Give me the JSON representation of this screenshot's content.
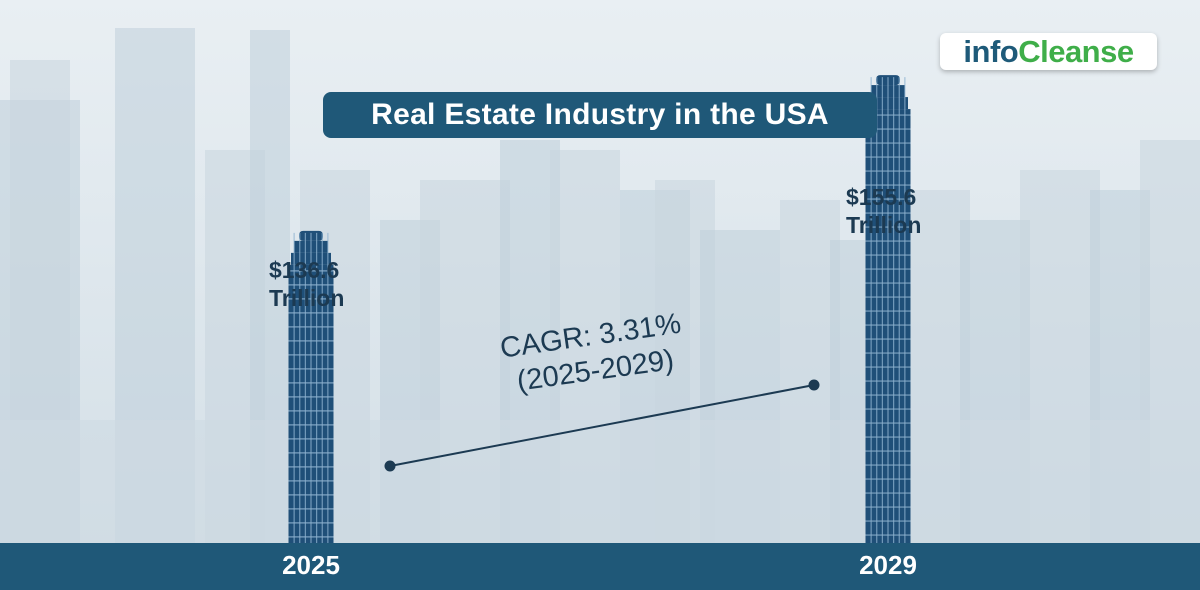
{
  "title": "Real Estate Industry in the USA",
  "logo": {
    "part1": "info",
    "part2": "Cleanse"
  },
  "chart_data": {
    "type": "bar",
    "categories": [
      "2025",
      "2029"
    ],
    "values": [
      136.6,
      155.6
    ],
    "unit": "Trillion",
    "value_labels": [
      {
        "line1": "$136.6",
        "line2": "Trillion"
      },
      {
        "line1": "$155.6",
        "line2": "Trillion"
      }
    ],
    "annotation": {
      "line1": "CAGR: 3.31%",
      "line2": "(2025-2029)"
    },
    "colors": {
      "bar": "#1f4f78",
      "bar_stripe": "#8fb3d0",
      "accent": "#1f5878",
      "text": "#1c3a52"
    }
  }
}
